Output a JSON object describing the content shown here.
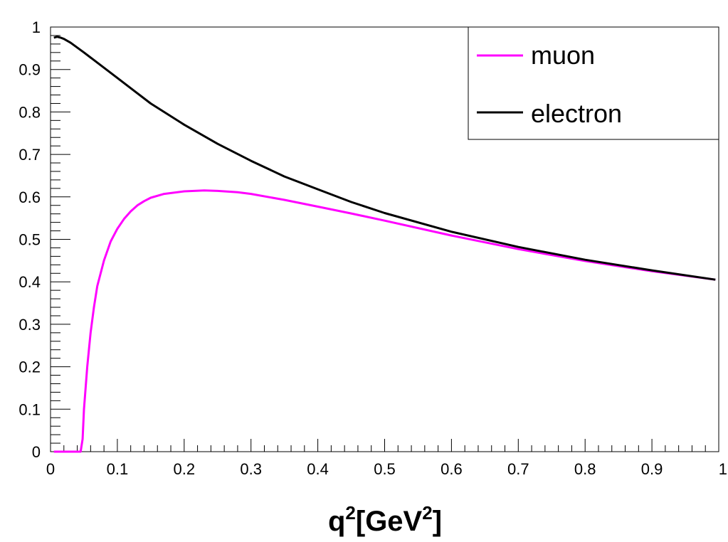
{
  "chart_data": {
    "type": "line",
    "title": "",
    "xlabel": "q",
    "xlabel_sup1": "2",
    "xlabel_mid": "[GeV",
    "xlabel_sup2": "2",
    "xlabel_end": "]",
    "ylabel": "",
    "xlim": [
      0,
      1
    ],
    "ylim": [
      0,
      1
    ],
    "xticks": [
      "0",
      "0.1",
      "0.2",
      "0.3",
      "0.4",
      "0.5",
      "0.6",
      "0.7",
      "0.8",
      "0.9",
      "1"
    ],
    "yticks": [
      "0",
      "0.1",
      "0.2",
      "0.3",
      "0.4",
      "0.5",
      "0.6",
      "0.7",
      "0.8",
      "0.9",
      "1"
    ],
    "grid": false,
    "legend_position": "top-right",
    "series": [
      {
        "name": "muon",
        "color": "#ff00ff",
        "x": [
          0.005,
          0.02,
          0.045,
          0.048,
          0.05,
          0.055,
          0.06,
          0.065,
          0.07,
          0.075,
          0.08,
          0.09,
          0.1,
          0.11,
          0.12,
          0.13,
          0.14,
          0.15,
          0.17,
          0.2,
          0.23,
          0.25,
          0.28,
          0.3,
          0.35,
          0.4,
          0.45,
          0.5,
          0.6,
          0.7,
          0.8,
          0.9,
          0.995
        ],
        "y": [
          0,
          0,
          0,
          0.03,
          0.1,
          0.2,
          0.28,
          0.34,
          0.39,
          0.42,
          0.45,
          0.495,
          0.525,
          0.548,
          0.566,
          0.58,
          0.59,
          0.598,
          0.607,
          0.613,
          0.615,
          0.614,
          0.611,
          0.607,
          0.593,
          0.577,
          0.561,
          0.544,
          0.509,
          0.477,
          0.449,
          0.425,
          0.405
        ]
      },
      {
        "name": "electron",
        "color": "#000000",
        "x": [
          0.005,
          0.01,
          0.015,
          0.02,
          0.03,
          0.05,
          0.1,
          0.15,
          0.2,
          0.25,
          0.3,
          0.35,
          0.4,
          0.45,
          0.5,
          0.6,
          0.7,
          0.8,
          0.9,
          0.995
        ],
        "y": [
          0.975,
          0.977,
          0.975,
          0.972,
          0.963,
          0.94,
          0.88,
          0.82,
          0.77,
          0.725,
          0.685,
          0.648,
          0.618,
          0.588,
          0.562,
          0.518,
          0.482,
          0.452,
          0.427,
          0.405
        ]
      }
    ]
  }
}
